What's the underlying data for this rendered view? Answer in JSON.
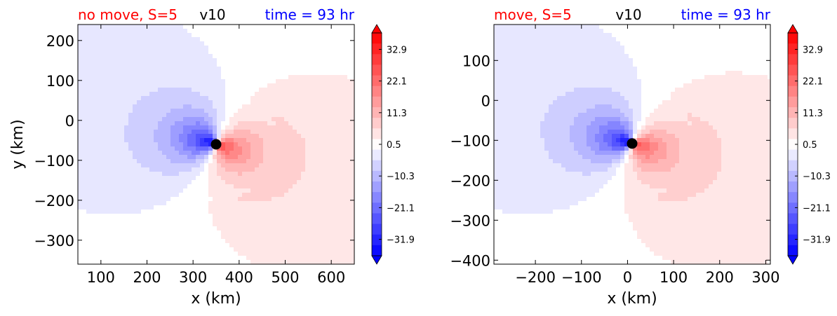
{
  "figure": {
    "colors": {
      "title_left": "#ff0000",
      "title_center": "#000000",
      "title_right": "#0000ff",
      "negative_max": "#0000ff",
      "positive_max": "#ff0000",
      "zero": "#ffffff",
      "marker": "#000000"
    }
  },
  "chart_data": [
    {
      "type": "heatmap",
      "title_left": "no move, S=5",
      "title_center": "v10",
      "title_right": "time = 93 hr",
      "xlabel": "x (km)",
      "ylabel": "y (km)",
      "xlim": [
        50,
        650
      ],
      "ylim": [
        -360,
        240
      ],
      "xticks": [
        100,
        200,
        300,
        400,
        500,
        600
      ],
      "yticks": [
        200,
        100,
        0,
        -100,
        -200,
        -300
      ],
      "xtick_labels": [
        "100",
        "200",
        "300",
        "400",
        "500",
        "600"
      ],
      "ytick_labels": [
        "200",
        "100",
        "0",
        "−100",
        "−200",
        "−300"
      ],
      "center": {
        "x": 350,
        "y": -60
      },
      "colorbar": {
        "min": -37.5,
        "max": 38.5,
        "extend": "both",
        "ticks": [
          32.9,
          22.1,
          11.3,
          0.5,
          -10.3,
          -21.1,
          -31.9
        ],
        "tick_labels": [
          "32.9",
          "22.1",
          "11.3",
          "0.5",
          "−10.3",
          "−21.1",
          "−31.9"
        ]
      }
    },
    {
      "type": "heatmap",
      "title_left": "move, S=5",
      "title_center": "v10",
      "title_right": "time = 93 hr",
      "xlabel": "x (km)",
      "ylabel": "",
      "xlim": [
        -290,
        310
      ],
      "ylim": [
        -410,
        190
      ],
      "xticks": [
        -200,
        -100,
        0,
        100,
        200,
        300
      ],
      "yticks": [
        100,
        0,
        -100,
        -200,
        -300,
        -400
      ],
      "xtick_labels": [
        "−200",
        "−100",
        "0",
        "100",
        "200",
        "300"
      ],
      "ytick_labels": [
        "100",
        "0",
        "−100",
        "−200",
        "−300",
        "−400"
      ],
      "center": {
        "x": 10,
        "y": -108
      },
      "colorbar": {
        "min": -37.5,
        "max": 38.5,
        "extend": "both",
        "ticks": [
          32.9,
          22.1,
          11.3,
          0.5,
          -10.3,
          -21.1,
          -31.9
        ],
        "tick_labels": [
          "32.9",
          "22.1",
          "11.3",
          "0.5",
          "−10.3",
          "−21.1",
          "−31.9"
        ]
      }
    }
  ]
}
